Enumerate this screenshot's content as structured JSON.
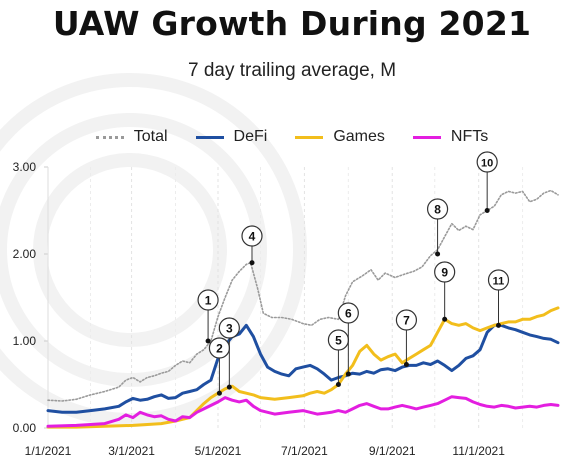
{
  "chart_data": {
    "type": "line",
    "title": "UAW Growth During 2021",
    "subtitle": "7 day trailing average, M",
    "xlabel": "",
    "ylabel": "",
    "x_tick_labels": [
      "1/1/2021",
      "3/1/2021",
      "5/1/2021",
      "7/1/2021",
      "9/1/2021",
      "11/1/2021"
    ],
    "y_tick_labels": [
      "0.00",
      "1.00",
      "2.00",
      "3.00"
    ],
    "ylim": [
      0,
      3
    ],
    "x_range_days": [
      0,
      360
    ],
    "grid": "vertical-dashed",
    "legend_position": "top-center",
    "series": [
      {
        "name": "Total",
        "color": "#9a9a9a",
        "style": "dotted",
        "points": [
          [
            0,
            0.32
          ],
          [
            10,
            0.31
          ],
          [
            20,
            0.33
          ],
          [
            30,
            0.38
          ],
          [
            40,
            0.42
          ],
          [
            50,
            0.47
          ],
          [
            55,
            0.55
          ],
          [
            60,
            0.58
          ],
          [
            65,
            0.53
          ],
          [
            70,
            0.58
          ],
          [
            75,
            0.6
          ],
          [
            80,
            0.63
          ],
          [
            85,
            0.65
          ],
          [
            90,
            0.72
          ],
          [
            95,
            0.77
          ],
          [
            100,
            0.75
          ],
          [
            105,
            0.85
          ],
          [
            110,
            0.9
          ],
          [
            115,
            1.0
          ],
          [
            120,
            1.28
          ],
          [
            125,
            1.5
          ],
          [
            130,
            1.7
          ],
          [
            135,
            1.8
          ],
          [
            140,
            1.88
          ],
          [
            143,
            1.9
          ],
          [
            148,
            1.6
          ],
          [
            152,
            1.32
          ],
          [
            158,
            1.27
          ],
          [
            165,
            1.27
          ],
          [
            172,
            1.25
          ],
          [
            180,
            1.2
          ],
          [
            186,
            1.18
          ],
          [
            192,
            1.25
          ],
          [
            198,
            1.27
          ],
          [
            205,
            1.25
          ],
          [
            210,
            1.52
          ],
          [
            215,
            1.68
          ],
          [
            222,
            1.75
          ],
          [
            228,
            1.82
          ],
          [
            233,
            1.7
          ],
          [
            238,
            1.78
          ],
          [
            245,
            1.73
          ],
          [
            252,
            1.77
          ],
          [
            258,
            1.8
          ],
          [
            264,
            1.85
          ],
          [
            270,
            1.98
          ],
          [
            275,
            2.05
          ],
          [
            280,
            2.2
          ],
          [
            285,
            2.35
          ],
          [
            290,
            2.27
          ],
          [
            295,
            2.32
          ],
          [
            300,
            2.28
          ],
          [
            305,
            2.45
          ],
          [
            310,
            2.5
          ],
          [
            315,
            2.55
          ],
          [
            320,
            2.68
          ],
          [
            325,
            2.72
          ],
          [
            330,
            2.7
          ],
          [
            335,
            2.72
          ],
          [
            340,
            2.6
          ],
          [
            345,
            2.63
          ],
          [
            350,
            2.7
          ],
          [
            355,
            2.73
          ],
          [
            360,
            2.68
          ]
        ]
      },
      {
        "name": "DeFi",
        "color": "#1f4fa1",
        "style": "solid",
        "points": [
          [
            0,
            0.2
          ],
          [
            10,
            0.18
          ],
          [
            20,
            0.18
          ],
          [
            30,
            0.2
          ],
          [
            40,
            0.22
          ],
          [
            50,
            0.25
          ],
          [
            55,
            0.3
          ],
          [
            60,
            0.34
          ],
          [
            65,
            0.32
          ],
          [
            70,
            0.33
          ],
          [
            75,
            0.36
          ],
          [
            80,
            0.38
          ],
          [
            85,
            0.34
          ],
          [
            90,
            0.35
          ],
          [
            95,
            0.4
          ],
          [
            100,
            0.42
          ],
          [
            105,
            0.44
          ],
          [
            110,
            0.5
          ],
          [
            115,
            0.55
          ],
          [
            120,
            0.8
          ],
          [
            125,
            0.95
          ],
          [
            130,
            1.05
          ],
          [
            135,
            1.08
          ],
          [
            140,
            1.18
          ],
          [
            145,
            1.05
          ],
          [
            150,
            0.85
          ],
          [
            155,
            0.7
          ],
          [
            160,
            0.65
          ],
          [
            165,
            0.62
          ],
          [
            170,
            0.6
          ],
          [
            175,
            0.68
          ],
          [
            180,
            0.7
          ],
          [
            185,
            0.72
          ],
          [
            190,
            0.68
          ],
          [
            195,
            0.62
          ],
          [
            200,
            0.55
          ],
          [
            205,
            0.58
          ],
          [
            210,
            0.6
          ],
          [
            215,
            0.63
          ],
          [
            220,
            0.62
          ],
          [
            225,
            0.65
          ],
          [
            230,
            0.63
          ],
          [
            235,
            0.67
          ],
          [
            240,
            0.68
          ],
          [
            245,
            0.66
          ],
          [
            250,
            0.7
          ],
          [
            255,
            0.72
          ],
          [
            260,
            0.72
          ],
          [
            265,
            0.75
          ],
          [
            270,
            0.73
          ],
          [
            275,
            0.77
          ],
          [
            280,
            0.72
          ],
          [
            285,
            0.66
          ],
          [
            290,
            0.72
          ],
          [
            295,
            0.8
          ],
          [
            300,
            0.83
          ],
          [
            305,
            0.9
          ],
          [
            310,
            1.1
          ],
          [
            315,
            1.18
          ],
          [
            320,
            1.18
          ],
          [
            325,
            1.15
          ],
          [
            330,
            1.13
          ],
          [
            335,
            1.1
          ],
          [
            340,
            1.07
          ],
          [
            345,
            1.05
          ],
          [
            350,
            1.03
          ],
          [
            355,
            1.02
          ],
          [
            360,
            0.98
          ]
        ]
      },
      {
        "name": "Games",
        "color": "#f2be1c",
        "style": "solid",
        "points": [
          [
            0,
            0.01
          ],
          [
            20,
            0.01
          ],
          [
            40,
            0.02
          ],
          [
            60,
            0.03
          ],
          [
            70,
            0.04
          ],
          [
            80,
            0.05
          ],
          [
            90,
            0.08
          ],
          [
            100,
            0.12
          ],
          [
            110,
            0.28
          ],
          [
            115,
            0.35
          ],
          [
            120,
            0.4
          ],
          [
            125,
            0.45
          ],
          [
            130,
            0.48
          ],
          [
            135,
            0.42
          ],
          [
            140,
            0.4
          ],
          [
            145,
            0.38
          ],
          [
            150,
            0.35
          ],
          [
            160,
            0.33
          ],
          [
            170,
            0.35
          ],
          [
            180,
            0.37
          ],
          [
            185,
            0.4
          ],
          [
            190,
            0.42
          ],
          [
            195,
            0.4
          ],
          [
            200,
            0.44
          ],
          [
            205,
            0.5
          ],
          [
            210,
            0.62
          ],
          [
            215,
            0.72
          ],
          [
            220,
            0.88
          ],
          [
            225,
            0.95
          ],
          [
            230,
            0.85
          ],
          [
            235,
            0.78
          ],
          [
            240,
            0.82
          ],
          [
            245,
            0.85
          ],
          [
            250,
            0.75
          ],
          [
            255,
            0.8
          ],
          [
            260,
            0.85
          ],
          [
            265,
            0.9
          ],
          [
            270,
            0.95
          ],
          [
            275,
            1.1
          ],
          [
            280,
            1.25
          ],
          [
            285,
            1.2
          ],
          [
            290,
            1.18
          ],
          [
            295,
            1.2
          ],
          [
            300,
            1.15
          ],
          [
            305,
            1.12
          ],
          [
            310,
            1.15
          ],
          [
            315,
            1.18
          ],
          [
            320,
            1.2
          ],
          [
            325,
            1.22
          ],
          [
            330,
            1.22
          ],
          [
            335,
            1.25
          ],
          [
            340,
            1.25
          ],
          [
            345,
            1.28
          ],
          [
            350,
            1.3
          ],
          [
            355,
            1.35
          ],
          [
            360,
            1.38
          ]
        ]
      },
      {
        "name": "NFTs",
        "color": "#e31ee0",
        "style": "solid",
        "points": [
          [
            0,
            0.02
          ],
          [
            20,
            0.03
          ],
          [
            40,
            0.05
          ],
          [
            50,
            0.1
          ],
          [
            55,
            0.15
          ],
          [
            60,
            0.12
          ],
          [
            65,
            0.18
          ],
          [
            70,
            0.15
          ],
          [
            75,
            0.13
          ],
          [
            80,
            0.14
          ],
          [
            85,
            0.1
          ],
          [
            90,
            0.08
          ],
          [
            95,
            0.13
          ],
          [
            100,
            0.12
          ],
          [
            105,
            0.18
          ],
          [
            110,
            0.22
          ],
          [
            115,
            0.26
          ],
          [
            120,
            0.3
          ],
          [
            125,
            0.35
          ],
          [
            130,
            0.32
          ],
          [
            135,
            0.3
          ],
          [
            140,
            0.32
          ],
          [
            145,
            0.25
          ],
          [
            150,
            0.2
          ],
          [
            155,
            0.18
          ],
          [
            160,
            0.16
          ],
          [
            170,
            0.18
          ],
          [
            180,
            0.2
          ],
          [
            185,
            0.18
          ],
          [
            190,
            0.16
          ],
          [
            195,
            0.17
          ],
          [
            200,
            0.18
          ],
          [
            205,
            0.2
          ],
          [
            210,
            0.18
          ],
          [
            215,
            0.22
          ],
          [
            220,
            0.26
          ],
          [
            225,
            0.28
          ],
          [
            230,
            0.25
          ],
          [
            235,
            0.22
          ],
          [
            240,
            0.22
          ],
          [
            245,
            0.24
          ],
          [
            250,
            0.26
          ],
          [
            255,
            0.24
          ],
          [
            260,
            0.22
          ],
          [
            265,
            0.24
          ],
          [
            270,
            0.26
          ],
          [
            275,
            0.28
          ],
          [
            280,
            0.32
          ],
          [
            285,
            0.36
          ],
          [
            290,
            0.35
          ],
          [
            295,
            0.34
          ],
          [
            300,
            0.3
          ],
          [
            305,
            0.27
          ],
          [
            310,
            0.25
          ],
          [
            315,
            0.24
          ],
          [
            320,
            0.26
          ],
          [
            325,
            0.25
          ],
          [
            330,
            0.23
          ],
          [
            335,
            0.24
          ],
          [
            340,
            0.25
          ],
          [
            345,
            0.24
          ],
          [
            350,
            0.26
          ],
          [
            355,
            0.27
          ],
          [
            360,
            0.26
          ]
        ]
      }
    ],
    "annotations": [
      {
        "label": "1",
        "x": 113,
        "y": 1.0
      },
      {
        "label": "2",
        "x": 121,
        "y": 0.4
      },
      {
        "label": "3",
        "x": 128,
        "y": 0.47
      },
      {
        "label": "4",
        "x": 144,
        "y": 1.9
      },
      {
        "label": "5",
        "x": 205,
        "y": 0.5
      },
      {
        "label": "6",
        "x": 212,
        "y": 0.62
      },
      {
        "label": "7",
        "x": 253,
        "y": 0.73
      },
      {
        "label": "8",
        "x": 275,
        "y": 2.0
      },
      {
        "label": "9",
        "x": 280,
        "y": 1.25
      },
      {
        "label": "10",
        "x": 310,
        "y": 2.5
      },
      {
        "label": "11",
        "x": 318,
        "y": 1.18
      }
    ]
  }
}
